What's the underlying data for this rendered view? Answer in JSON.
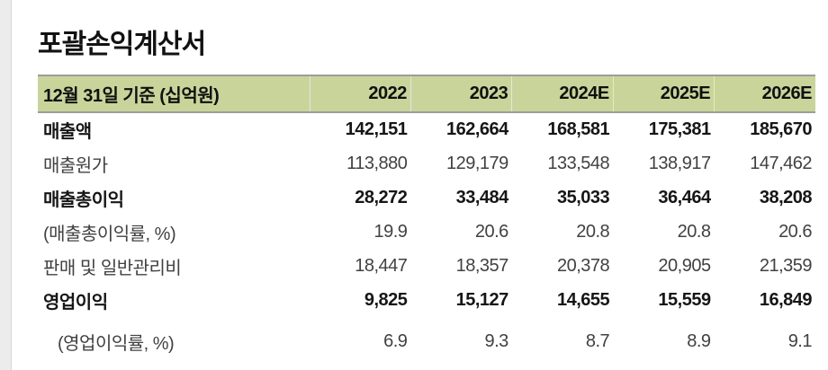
{
  "page": {
    "title": "포괄손익계산서"
  },
  "table": {
    "header": {
      "label": "12월 31일 기준 (십억원)",
      "columns": [
        "2022",
        "2023",
        "2024E",
        "2025E",
        "2026E"
      ]
    },
    "rows": [
      {
        "label": "매출액",
        "bold": true,
        "values": [
          "142,151",
          "162,664",
          "168,581",
          "175,381",
          "185,670"
        ]
      },
      {
        "label": "매출원가",
        "bold": false,
        "values": [
          "113,880",
          "129,179",
          "133,548",
          "138,917",
          "147,462"
        ]
      },
      {
        "label": "매출총이익",
        "bold": true,
        "values": [
          "28,272",
          "33,484",
          "35,033",
          "36,464",
          "38,208"
        ]
      },
      {
        "label": "(매출총이익률, %)",
        "bold": false,
        "values": [
          "19.9",
          "20.6",
          "20.8",
          "20.8",
          "20.6"
        ]
      },
      {
        "label": "판매 및 일반관리비",
        "bold": false,
        "values": [
          "18,447",
          "18,357",
          "20,378",
          "20,905",
          "21,359"
        ]
      },
      {
        "label": "영업이익",
        "bold": true,
        "values": [
          "9,825",
          "15,127",
          "14,655",
          "15,559",
          "16,849"
        ]
      },
      {
        "label": "(영업이익률, %)",
        "bold": false,
        "values": [
          "6.9",
          "9.3",
          "8.7",
          "8.9",
          "9.1"
        ]
      }
    ],
    "colors": {
      "header_bg": "#c9d49a",
      "border": "#9c9c9c",
      "bold_text": "#161616",
      "regular_text": "#414141"
    }
  },
  "chart_data": {
    "type": "table",
    "title": "포괄손익계산서",
    "unit_note": "12월 31일 기준 (십억원)",
    "columns": [
      "2022",
      "2023",
      "2024E",
      "2025E",
      "2026E"
    ],
    "series": [
      {
        "name": "매출액",
        "values": [
          142151,
          162664,
          168581,
          175381,
          185670
        ]
      },
      {
        "name": "매출원가",
        "values": [
          113880,
          129179,
          133548,
          138917,
          147462
        ]
      },
      {
        "name": "매출총이익",
        "values": [
          28272,
          33484,
          35033,
          36464,
          38208
        ]
      },
      {
        "name": "매출총이익률(%)",
        "values": [
          19.9,
          20.6,
          20.8,
          20.8,
          20.6
        ]
      },
      {
        "name": "판매 및 일반관리비",
        "values": [
          18447,
          18357,
          20378,
          20905,
          21359
        ]
      },
      {
        "name": "영업이익",
        "values": [
          9825,
          15127,
          14655,
          15559,
          16849
        ]
      },
      {
        "name": "영업이익률(%)",
        "values": [
          6.9,
          9.3,
          8.7,
          8.9,
          9.1
        ]
      }
    ]
  }
}
